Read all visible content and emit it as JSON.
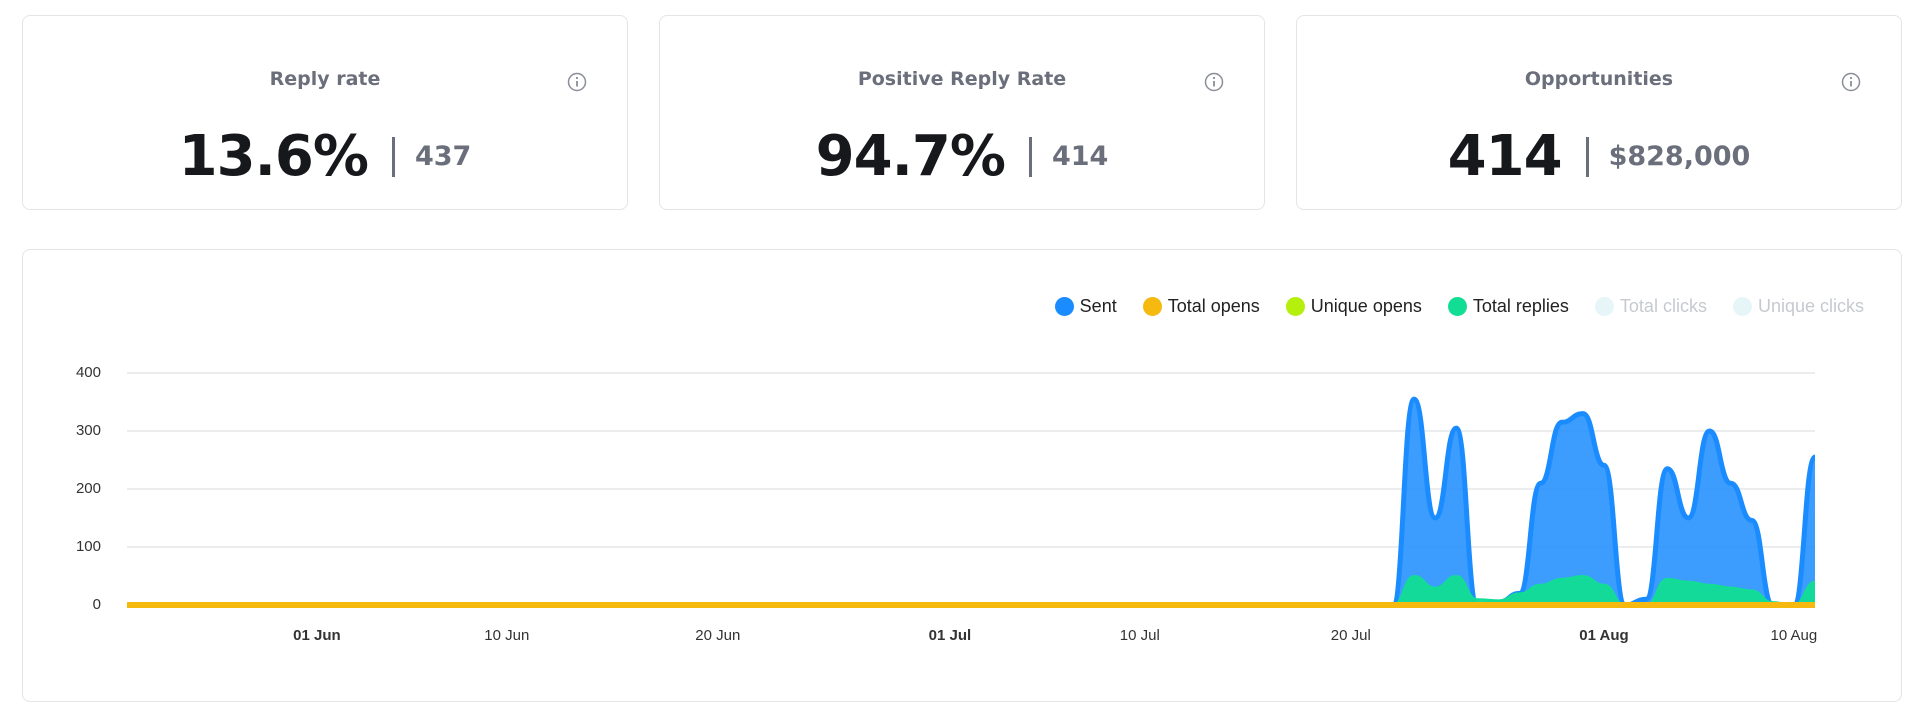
{
  "cards": [
    {
      "title": "Reply rate",
      "value": "13.6%",
      "secondary": "437"
    },
    {
      "title": "Positive Reply Rate",
      "value": "94.7%",
      "secondary": "414"
    },
    {
      "title": "Opportunities",
      "value": "414",
      "secondary": "$828,000"
    }
  ],
  "chart_data": {
    "type": "area",
    "x": [
      "23 May",
      "24 May",
      "25 May",
      "26 May",
      "27 May",
      "28 May",
      "29 May",
      "30 May",
      "31 May",
      "01 Jun",
      "02 Jun",
      "03 Jun",
      "04 Jun",
      "05 Jun",
      "06 Jun",
      "07 Jun",
      "08 Jun",
      "09 Jun",
      "10 Jun",
      "11 Jun",
      "12 Jun",
      "13 Jun",
      "14 Jun",
      "15 Jun",
      "16 Jun",
      "17 Jun",
      "18 Jun",
      "19 Jun",
      "20 Jun",
      "21 Jun",
      "22 Jun",
      "23 Jun",
      "24 Jun",
      "25 Jun",
      "26 Jun",
      "27 Jun",
      "28 Jun",
      "29 Jun",
      "30 Jun",
      "01 Jul",
      "02 Jul",
      "03 Jul",
      "04 Jul",
      "05 Jul",
      "06 Jul",
      "07 Jul",
      "08 Jul",
      "09 Jul",
      "10 Jul",
      "11 Jul",
      "12 Jul",
      "13 Jul",
      "14 Jul",
      "15 Jul",
      "16 Jul",
      "17 Jul",
      "18 Jul",
      "19 Jul",
      "20 Jul",
      "21 Jul",
      "22 Jul",
      "23 Jul",
      "24 Jul",
      "25 Jul",
      "26 Jul",
      "27 Jul",
      "28 Jul",
      "29 Jul",
      "30 Jul",
      "31 Jul",
      "01 Aug",
      "02 Aug",
      "03 Aug",
      "04 Aug",
      "05 Aug",
      "06 Aug",
      "07 Aug",
      "08 Aug",
      "09 Aug",
      "10 Aug",
      "11 Aug"
    ],
    "series": [
      {
        "name": "Sent",
        "color": "#1a8cff",
        "values": [
          0,
          0,
          0,
          0,
          0,
          0,
          0,
          0,
          0,
          0,
          0,
          0,
          0,
          0,
          0,
          0,
          0,
          0,
          0,
          0,
          0,
          0,
          0,
          0,
          0,
          0,
          0,
          0,
          0,
          0,
          0,
          0,
          0,
          0,
          0,
          0,
          0,
          0,
          0,
          0,
          0,
          0,
          0,
          0,
          0,
          0,
          0,
          0,
          0,
          0,
          0,
          0,
          0,
          0,
          0,
          0,
          0,
          0,
          0,
          0,
          0,
          355,
          150,
          305,
          0,
          5,
          20,
          210,
          315,
          330,
          241,
          0,
          10,
          235,
          150,
          300,
          210,
          146,
          0,
          0,
          255
        ]
      },
      {
        "name": "Total opens",
        "color": "#f5b90f",
        "values": [
          0,
          0,
          0,
          0,
          0,
          0,
          0,
          0,
          0,
          0,
          0,
          0,
          0,
          0,
          0,
          0,
          0,
          0,
          0,
          0,
          0,
          0,
          0,
          0,
          0,
          0,
          0,
          0,
          0,
          0,
          0,
          0,
          0,
          0,
          0,
          0,
          0,
          0,
          0,
          0,
          0,
          0,
          0,
          0,
          0,
          0,
          0,
          0,
          0,
          0,
          0,
          0,
          0,
          0,
          0,
          0,
          0,
          0,
          0,
          0,
          0,
          0,
          0,
          0,
          0,
          0,
          0,
          0,
          0,
          0,
          0,
          0,
          0,
          0,
          0,
          0,
          0,
          0,
          0,
          0,
          0
        ]
      },
      {
        "name": "Unique opens",
        "color": "#b5ef0c",
        "values": [
          0,
          0,
          0,
          0,
          0,
          0,
          0,
          0,
          0,
          0,
          0,
          0,
          0,
          0,
          0,
          0,
          0,
          0,
          0,
          0,
          0,
          0,
          0,
          0,
          0,
          0,
          0,
          0,
          0,
          0,
          0,
          0,
          0,
          0,
          0,
          0,
          0,
          0,
          0,
          0,
          0,
          0,
          0,
          0,
          0,
          0,
          0,
          0,
          0,
          0,
          0,
          0,
          0,
          0,
          0,
          0,
          0,
          0,
          0,
          0,
          0,
          0,
          0,
          0,
          0,
          0,
          0,
          0,
          0,
          0,
          0,
          0,
          0,
          0,
          0,
          0,
          0,
          0,
          0,
          0,
          0
        ]
      },
      {
        "name": "Total replies",
        "color": "#12dd94",
        "values": [
          0,
          0,
          0,
          0,
          0,
          0,
          0,
          0,
          0,
          0,
          0,
          0,
          0,
          0,
          0,
          0,
          0,
          0,
          0,
          0,
          0,
          0,
          0,
          0,
          0,
          0,
          0,
          0,
          0,
          0,
          0,
          0,
          0,
          0,
          0,
          0,
          0,
          0,
          0,
          0,
          0,
          0,
          0,
          0,
          0,
          0,
          0,
          0,
          0,
          0,
          0,
          0,
          0,
          0,
          0,
          0,
          0,
          0,
          0,
          0,
          0,
          50,
          30,
          50,
          10,
          8,
          20,
          35,
          45,
          50,
          35,
          0,
          0,
          45,
          40,
          35,
          30,
          25,
          5,
          0,
          40
        ]
      },
      {
        "name": "Total clicks",
        "color": "#e6f6f8",
        "hidden": true
      },
      {
        "name": "Unique clicks",
        "color": "#e6f6f8",
        "hidden": true
      }
    ],
    "ylim": [
      0,
      400
    ],
    "yticks": [
      0,
      100,
      200,
      300,
      400
    ],
    "grid": true,
    "xticks": [
      "01 Jun",
      "10 Jun",
      "20 Jun",
      "01 Jul",
      "10 Jul",
      "20 Jul",
      "01 Aug",
      "10 Aug"
    ],
    "legend": "top-right"
  }
}
